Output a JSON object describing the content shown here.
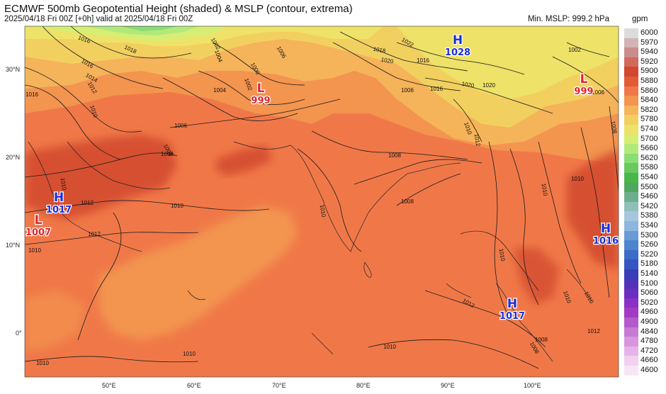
{
  "header": {
    "title": "ECMWF 500mb Geopotential Height (shaded) & MSLP (contour, extrema)",
    "subtitle": "2025/04/18 Fri 00Z [+0h] valid at 2025/04/18 Fri 00Z",
    "min_mslp": "Min. MSLP: 999.2 hPa",
    "unit": "gpm"
  },
  "axes": {
    "lat_labels": [
      "30°N",
      "20°N",
      "10°N",
      "0°"
    ],
    "lon_labels": [
      "50°E",
      "60°E",
      "70°E",
      "80°E",
      "90°E",
      "100°E"
    ]
  },
  "colorbar": {
    "labels": [
      "6000",
      "5970",
      "5940",
      "5920",
      "5900",
      "5880",
      "5860",
      "5840",
      "5820",
      "5780",
      "5740",
      "5700",
      "5660",
      "5620",
      "5580",
      "5540",
      "5500",
      "5460",
      "5420",
      "5380",
      "5340",
      "5300",
      "5260",
      "5220",
      "5180",
      "5140",
      "5100",
      "5060",
      "5020",
      "4960",
      "4900",
      "4840",
      "4780",
      "4720",
      "4660",
      "4600"
    ],
    "colors": [
      "#dcdcdc",
      "#d2b4b4",
      "#c98e8c",
      "#d16a5c",
      "#d2482f",
      "#e35a36",
      "#f07848",
      "#f3944f",
      "#f5b35a",
      "#f2d060",
      "#eee268",
      "#d6ee73",
      "#b1ea7a",
      "#8bdc72",
      "#68c95e",
      "#48b84a",
      "#50a85f",
      "#6fae8c",
      "#8ebfb8",
      "#a5c6dc",
      "#8eb5de",
      "#6a9bd5",
      "#4f84cf",
      "#3c6cc8",
      "#3556c2",
      "#3a3eb8",
      "#5133b8",
      "#6a2ec0",
      "#8b30c4",
      "#a13bc4",
      "#b45acc",
      "#c779d6",
      "#d896df",
      "#e6b3e8",
      "#f1d0f0",
      "#f8e6f8"
    ]
  },
  "extrema": [
    {
      "type": "H",
      "value": "1028"
    },
    {
      "type": "L",
      "value": "999"
    },
    {
      "type": "L",
      "value": "999"
    },
    {
      "type": "H",
      "value": "1017"
    },
    {
      "type": "L",
      "value": "1007"
    },
    {
      "type": "H",
      "value": "1016"
    },
    {
      "type": "H",
      "value": "1017"
    }
  ],
  "contour_labels": [
    "1016",
    "1018",
    "1016",
    "1014",
    "1012",
    "1010",
    "1016",
    "1008",
    "1006",
    "1004",
    "1002",
    "1000",
    "1002",
    "1004",
    "1006",
    "1018",
    "1022",
    "1020",
    "1020",
    "1016",
    "1016",
    "1020",
    "1012",
    "1010",
    "1008",
    "1008",
    "1006",
    "1010",
    "1008",
    "1012",
    "1010",
    "1012",
    "1010",
    "1010",
    "1012",
    "1010",
    "1010",
    "1010",
    "1010",
    "1008",
    "1008",
    "1010",
    "1010",
    "1012",
    "1010",
    "1002",
    "1006",
    "1008",
    "1010"
  ],
  "colors": {
    "H": "#1a2fd8",
    "L": "#e0242a"
  }
}
